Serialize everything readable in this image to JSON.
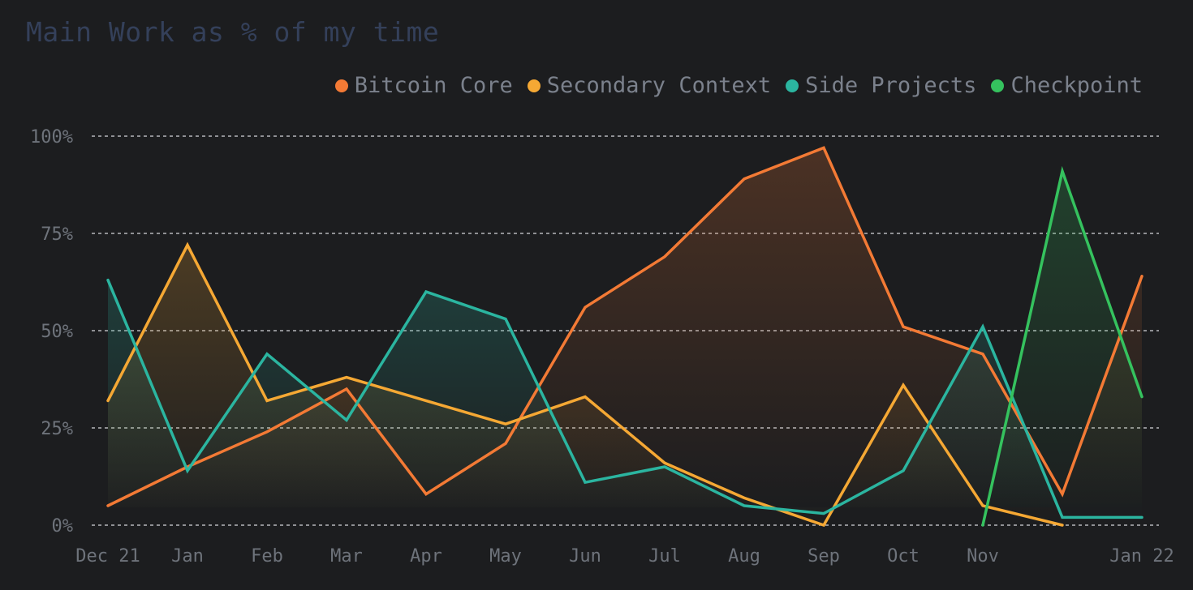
{
  "chart_data": {
    "type": "area",
    "title": "Main Work as % of my time",
    "categories": [
      "Dec 21",
      "Jan",
      "Feb",
      "Mar",
      "Apr",
      "May",
      "Jun",
      "Jul",
      "Aug",
      "Sep",
      "Oct",
      "Nov",
      "",
      "Jan 22"
    ],
    "x_tick_labels": [
      "Dec 21",
      "Jan",
      "Feb",
      "Mar",
      "Apr",
      "May",
      "Jun",
      "Jul",
      "Aug",
      "Sep",
      "Oct",
      "Nov",
      "Jan 22"
    ],
    "y_tick_labels": [
      "0%",
      "25%",
      "50%",
      "75%",
      "100%"
    ],
    "y_ticks": [
      0,
      25,
      50,
      75,
      100
    ],
    "ylim": [
      0,
      100
    ],
    "grid": true,
    "legend_position": "top-right",
    "series": [
      {
        "name": "Bitcoin Core",
        "color": "#f37a35",
        "values": [
          5,
          15,
          24,
          35,
          8,
          21,
          56,
          69,
          89,
          97,
          51,
          44,
          8,
          64
        ]
      },
      {
        "name": "Secondary Context",
        "color": "#f5a834",
        "values": [
          32,
          72,
          32,
          38,
          32,
          26,
          33,
          16,
          7,
          0,
          36,
          5,
          0,
          null
        ]
      },
      {
        "name": "Side Projects",
        "color": "#2bb5a0",
        "values": [
          63,
          14,
          44,
          27,
          60,
          53,
          11,
          15,
          5,
          3,
          14,
          51,
          2,
          2
        ]
      },
      {
        "name": "Checkpoint",
        "color": "#35c25e",
        "values": [
          null,
          null,
          null,
          null,
          null,
          null,
          null,
          null,
          null,
          null,
          null,
          0,
          91,
          33
        ]
      }
    ]
  }
}
